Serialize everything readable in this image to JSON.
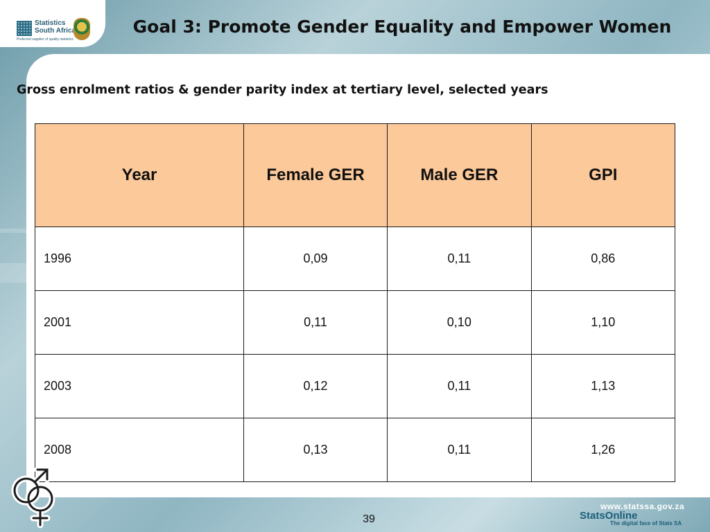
{
  "logo": {
    "name": "Statistics\nSouth Africa",
    "tagline": "Preferred supplier of quality statistics"
  },
  "title": "Goal 3: Promote Gender Equality and Empower Women",
  "subtitle": "Gross enrolment ratios & gender parity index at tertiary level, selected years",
  "table": {
    "headers": [
      "Year",
      "Female GER",
      "Male GER",
      "GPI"
    ],
    "rows": [
      [
        "1996",
        "0,09",
        "0,11",
        "0,86"
      ],
      [
        "2001",
        "0,11",
        "0,10",
        "1,10"
      ],
      [
        "2003",
        "0,12",
        "0,11",
        "1,13"
      ],
      [
        "2008",
        "0,13",
        "0,11",
        "1,26"
      ]
    ]
  },
  "footer": {
    "page_number": "39",
    "url": "www.statssa.gov.za",
    "brand": "StatsOnline",
    "brand_tagline": "The digital face of Stats SA"
  },
  "colors": {
    "header_fill": "#fcc99a",
    "background_teal": "#8fb6c2",
    "brand_blue": "#1c5d78"
  },
  "icons": [
    "gender-symbol-icon",
    "coat-of-arms-icon",
    "statssa-grid-icon"
  ]
}
